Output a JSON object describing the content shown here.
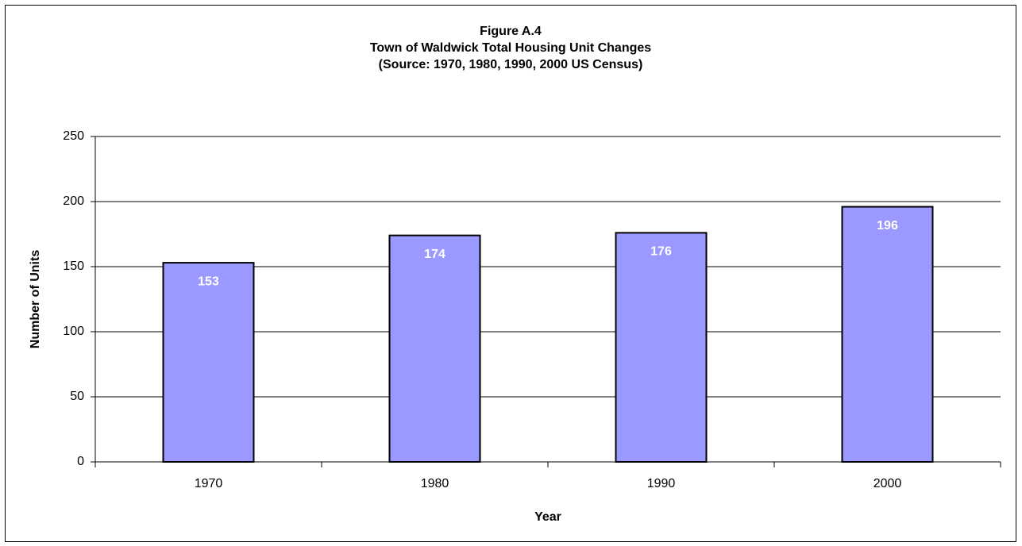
{
  "chart_data": {
    "type": "bar",
    "title": [
      "Figure A.4",
      "Town of Waldwick Total Housing Unit Changes",
      "(Source:  1970, 1980, 1990, 2000 US Census)"
    ],
    "x_label": "Year",
    "y_label": "Number of Units",
    "categories": [
      "1970",
      "1980",
      "1990",
      "2000"
    ],
    "values": [
      153,
      174,
      176,
      196
    ],
    "color": "#9999ff",
    "ylim": [
      0,
      250
    ],
    "yticks": [
      0,
      50,
      100,
      150,
      200,
      250
    ],
    "grid": true
  }
}
